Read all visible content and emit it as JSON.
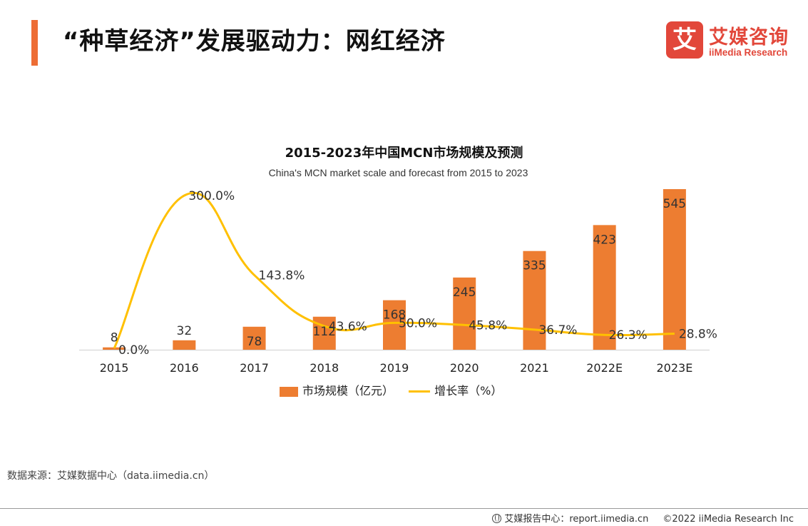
{
  "header": {
    "title": "“种草经济”发展驱动力：网红经济",
    "logo_mark": "艾",
    "logo_cn": "艾媒咨询",
    "logo_en": "iiMedia Research"
  },
  "colors": {
    "accent": "#ED6D35",
    "bar": "#ED7D31",
    "line": "#FFC000",
    "logo": "#E2473A"
  },
  "chart_data": {
    "type": "bar",
    "title": "2015-2023年中国MCN市场规模及预测",
    "subtitle": "China's MCN market scale and forecast from 2015 to 2023",
    "categories": [
      "2015",
      "2016",
      "2017",
      "2018",
      "2019",
      "2020",
      "2021",
      "2022E",
      "2023E"
    ],
    "series": [
      {
        "name": "市场规模（亿元）",
        "type": "bar",
        "axis": "left",
        "values": [
          8,
          32,
          78,
          112,
          168,
          245,
          335,
          423,
          545
        ],
        "labels": [
          "8",
          "32",
          "78",
          "112",
          "168",
          "245",
          "335",
          "423",
          "545"
        ]
      },
      {
        "name": "增长率（%）",
        "type": "line",
        "axis": "right",
        "smooth": true,
        "values": [
          0.0,
          300.0,
          143.8,
          43.6,
          50.0,
          45.8,
          36.7,
          26.3,
          28.8
        ],
        "labels": [
          "0.0%",
          "300.0%",
          "143.8%",
          "43.6%",
          "50.0%",
          "45.8%",
          "36.7%",
          "26.3%",
          "28.8%"
        ]
      }
    ],
    "ylim": [
      0,
      545
    ],
    "y2lim": [
      -10,
      300
    ],
    "xlabel": "",
    "ylabel": "",
    "grid": false,
    "legend": "bottom-center"
  },
  "legend": {
    "bar_label": "市场规模（亿元）",
    "line_label": "增长率（%）"
  },
  "source": "数据来源：艾媒数据中心（data.iimedia.cn）",
  "footer": {
    "report_center": "艾媒报告中心：report.iimedia.cn",
    "copyright": "©2022  iiMedia Research  Inc"
  }
}
